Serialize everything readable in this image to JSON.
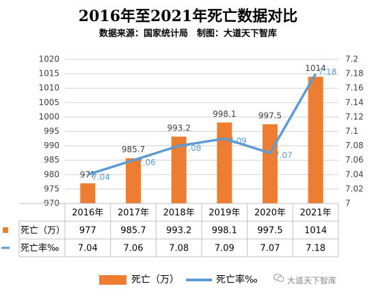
{
  "title": "2016年至2021年死亡数据对比",
  "subtitle": "数据来源：国家统计局　制图：大道天下智库",
  "watermark": "大道天下智库",
  "colors": {
    "bar": "#ED7D31",
    "line": "#5B9BD5",
    "line_label": "#5B9BD5",
    "grid": "#d0d0d0"
  },
  "chart_data": {
    "type": "bar",
    "categories": [
      "2016年",
      "2017年",
      "2018年",
      "2019年",
      "2020年",
      "2021年"
    ],
    "series": [
      {
        "name": "死亡（万）",
        "type": "bar",
        "axis": "left",
        "values": [
          977,
          985.7,
          993.2,
          998.1,
          997.5,
          1014
        ],
        "labels": [
          "977",
          "985.7",
          "993.2",
          "998.1",
          "997.5",
          "1014"
        ]
      },
      {
        "name": "死亡率‰",
        "type": "line",
        "axis": "right",
        "values": [
          7.04,
          7.06,
          7.08,
          7.09,
          7.07,
          7.18
        ],
        "labels": [
          "7.04",
          "7.06",
          "7.08",
          "7.09",
          "7.07",
          "7.18"
        ]
      }
    ],
    "y_left": {
      "min": 970,
      "max": 1020,
      "ticks": [
        "970",
        "975",
        "980",
        "985",
        "990",
        "995",
        "1000",
        "1005",
        "1010",
        "1015",
        "1020"
      ]
    },
    "y_right": {
      "min": 7,
      "max": 7.2,
      "ticks": [
        "7",
        "7.02",
        "7.04",
        "7.06",
        "7.08",
        "7.1",
        "7.12",
        "7.14",
        "7.16",
        "7.18",
        "7.2"
      ]
    },
    "data_table": true,
    "legend_position": "bottom"
  }
}
